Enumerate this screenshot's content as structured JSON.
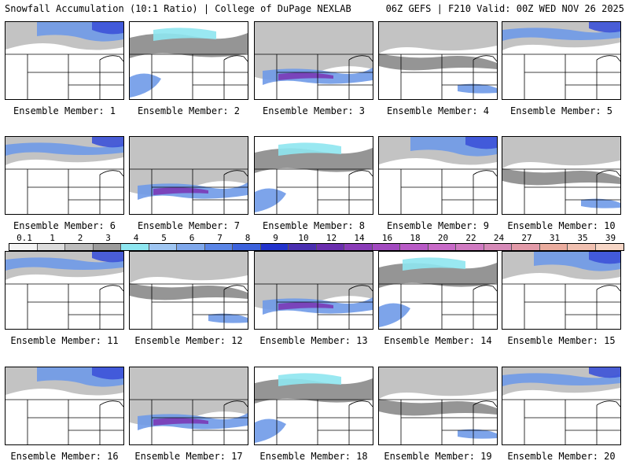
{
  "header": {
    "left": "Snowfall Accumulation (10:1 Ratio) | College of DuPage NEXLAB",
    "right": "06Z GEFS | F210 Valid: 00Z WED NOV 26 2025"
  },
  "member_label_prefix": "Ensemble Member: ",
  "members": [
    "1",
    "2",
    "3",
    "4",
    "5",
    "6",
    "7",
    "8",
    "9",
    "10",
    "11",
    "12",
    "13",
    "14",
    "15",
    "16",
    "17",
    "18",
    "19",
    "20"
  ],
  "colorbar": {
    "labels": [
      "0.1",
      "1",
      "2",
      "3",
      "4",
      "5",
      "6",
      "7",
      "8",
      "9",
      "10",
      "12",
      "14",
      "16",
      "18",
      "20",
      "22",
      "24",
      "27",
      "31",
      "35",
      "39"
    ],
    "colors": [
      "#f4f4f4",
      "#dcdcdc",
      "#bdbdbd",
      "#9c9c9c",
      "#8ee6f0",
      "#9fc6f2",
      "#7fa8ec",
      "#5a85e6",
      "#3c62dc",
      "#2233cc",
      "#4a2fb0",
      "#6a2eae",
      "#8a3cb8",
      "#a24ac0",
      "#b85ac6",
      "#c86ac8",
      "#d07ac2",
      "#d68ab8",
      "#e29aa8",
      "#eaac9e",
      "#f0c0b0",
      "#f6d6c6"
    ]
  },
  "colors": {
    "snow_light": "#bdbdbd",
    "snow_gray": "#8a8a8a",
    "snow_cyan": "#8ee6f0",
    "snow_blue": "#6f9ae8",
    "snow_deep": "#3c52d8",
    "snow_purple": "#7a3ab6",
    "snow_magenta": "#b06ac8"
  }
}
